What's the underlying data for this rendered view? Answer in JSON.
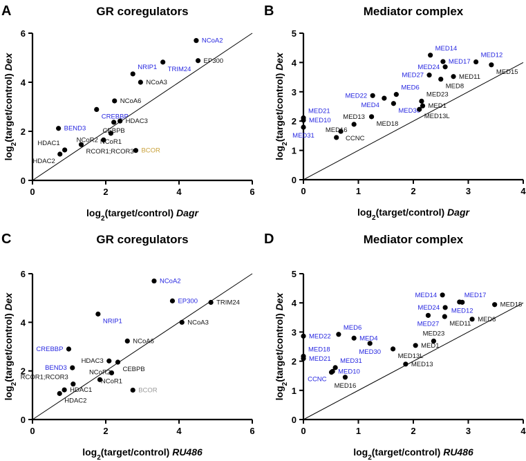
{
  "colors": {
    "blue": "#2626e0",
    "black": "#111111",
    "gold": "#c9a23c",
    "gray": "#9a9a9a"
  },
  "chart_data": [
    {
      "panel": "A",
      "type": "scatter",
      "title": "GR coregulators",
      "xlabel": {
        "prefix": "log",
        "sub": "2",
        "main": "(target/control) ",
        "italic": "Dagr"
      },
      "ylabel": {
        "prefix": "log",
        "sub": "2",
        "main": "(target/control) ",
        "italic": "Dex"
      },
      "xlim": [
        0,
        6
      ],
      "ylim": [
        0,
        6
      ],
      "xticks": [
        0,
        2,
        4,
        6
      ],
      "yticks": [
        0,
        2,
        4,
        6
      ],
      "identity_line": true,
      "points": [
        {
          "label": "NCoA2",
          "x": 4.47,
          "y": 5.7,
          "color": "blue",
          "pos": "r"
        },
        {
          "label": "EP300",
          "x": 4.52,
          "y": 4.88,
          "color": "black",
          "pos": "r"
        },
        {
          "label": "TRIM24",
          "x": 3.56,
          "y": 4.82,
          "color": "blue",
          "pos": "br"
        },
        {
          "label": "NRIP1",
          "x": 2.74,
          "y": 4.34,
          "color": "blue",
          "pos": "ar"
        },
        {
          "label": "NCoA3",
          "x": 2.95,
          "y": 4.0,
          "color": "black",
          "pos": "r"
        },
        {
          "label": "NCoA6",
          "x": 2.24,
          "y": 3.24,
          "color": "black",
          "pos": "r"
        },
        {
          "label": "CREBBP",
          "x": 1.75,
          "y": 2.89,
          "color": "blue",
          "pos": "br"
        },
        {
          "label": "CEBPB",
          "x": 2.22,
          "y": 2.37,
          "color": "black",
          "pos": "l"
        },
        {
          "label": "HDAC3",
          "x": 2.39,
          "y": 2.42,
          "color": "black",
          "pos": "r"
        },
        {
          "label": "BEND3",
          "x": 0.71,
          "y": 2.12,
          "color": "blue",
          "pos": "r"
        },
        {
          "label": "NCoR1",
          "x": 2.14,
          "y": 1.92,
          "color": "black",
          "pos": "r"
        },
        {
          "label": "NCoR2",
          "x": 1.94,
          "y": 1.65,
          "color": "black",
          "pos": "r"
        },
        {
          "label": "RCOR1;RCOR3",
          "x": 1.33,
          "y": 1.46,
          "color": "black",
          "pos": "br"
        },
        {
          "label": "HDAC1",
          "x": 0.88,
          "y": 1.24,
          "color": "black",
          "pos": "al"
        },
        {
          "label": "HDAC2",
          "x": 0.75,
          "y": 1.07,
          "color": "black",
          "pos": "bl"
        },
        {
          "label": "BCOR",
          "x": 2.82,
          "y": 1.22,
          "color": "gold",
          "pos": "r"
        }
      ]
    },
    {
      "panel": "B",
      "type": "scatter",
      "title": "Mediator complex",
      "xlabel": {
        "prefix": "log",
        "sub": "2",
        "main": "(target/control) ",
        "italic": "Dagr"
      },
      "ylabel": {
        "prefix": "log",
        "sub": "2",
        "main": "(target/control) ",
        "italic": "Dex"
      },
      "xlim": [
        0,
        4
      ],
      "ylim": [
        0,
        5
      ],
      "xticks": [
        0,
        1,
        2,
        3,
        4
      ],
      "yticks": [
        0,
        1,
        2,
        3,
        4,
        5
      ],
      "identity_line": true,
      "points": [
        {
          "label": "MED14",
          "x": 2.31,
          "y": 4.25,
          "color": "blue",
          "pos": "ar"
        },
        {
          "label": "MED17",
          "x": 2.54,
          "y": 4.03,
          "color": "blue",
          "pos": "r"
        },
        {
          "label": "MED12",
          "x": 3.14,
          "y": 4.02,
          "color": "blue",
          "pos": "ar"
        },
        {
          "label": "MED15",
          "x": 3.42,
          "y": 3.92,
          "color": "black",
          "pos": "br"
        },
        {
          "label": "MED24",
          "x": 2.58,
          "y": 3.85,
          "color": "blue",
          "pos": "l"
        },
        {
          "label": "MED27",
          "x": 2.29,
          "y": 3.57,
          "color": "blue",
          "pos": "l"
        },
        {
          "label": "MED11",
          "x": 2.73,
          "y": 3.52,
          "color": "black",
          "pos": "r"
        },
        {
          "label": "MED8",
          "x": 2.5,
          "y": 3.43,
          "color": "black",
          "pos": "br"
        },
        {
          "label": "MED6",
          "x": 1.69,
          "y": 2.91,
          "color": "blue",
          "pos": "ar"
        },
        {
          "label": "MED22",
          "x": 1.26,
          "y": 2.87,
          "color": "blue",
          "pos": "l"
        },
        {
          "label": "MED4",
          "x": 1.47,
          "y": 2.78,
          "color": "blue",
          "pos": "bl"
        },
        {
          "label": "MED30",
          "x": 1.64,
          "y": 2.6,
          "color": "blue",
          "pos": "br"
        },
        {
          "label": "MED23",
          "x": 2.15,
          "y": 2.68,
          "color": "black",
          "pos": "ar"
        },
        {
          "label": "MED1",
          "x": 2.17,
          "y": 2.52,
          "color": "black",
          "pos": "r"
        },
        {
          "label": "MED13L",
          "x": 2.11,
          "y": 2.4,
          "color": "black",
          "pos": "br"
        },
        {
          "label": "MED18",
          "x": 1.24,
          "y": 2.15,
          "color": "black",
          "pos": "br"
        },
        {
          "label": "MED13",
          "x": 0.92,
          "y": 1.89,
          "color": "black",
          "pos": "r"
        },
        {
          "label": "CCNC",
          "x": 0.68,
          "y": 1.65,
          "color": "black",
          "pos": "br"
        },
        {
          "label": "MED16",
          "x": 0.6,
          "y": 1.44,
          "color": "black",
          "pos": "br"
        },
        {
          "label": "MED21",
          "x": 0.0,
          "y": 2.11,
          "color": "blue",
          "pos": "ar"
        },
        {
          "label": "MED10",
          "x": 0.0,
          "y": 2.03,
          "color": "blue",
          "pos": "br"
        },
        {
          "label": "MED31",
          "x": 0.0,
          "y": 1.79,
          "color": "blue",
          "pos": "br2"
        }
      ]
    },
    {
      "panel": "C",
      "type": "scatter",
      "title": "GR coregulators",
      "xlabel": {
        "prefix": "log",
        "sub": "2",
        "main": "(target/control) ",
        "italic": "RU486"
      },
      "ylabel": {
        "prefix": "log",
        "sub": "2",
        "main": "(target/control) ",
        "italic": "Dex"
      },
      "xlim": [
        0,
        6
      ],
      "ylim": [
        0,
        6
      ],
      "xticks": [
        0,
        2,
        4,
        6
      ],
      "yticks": [
        0,
        2,
        4,
        6
      ],
      "identity_line": true,
      "points": [
        {
          "label": "NCoA2",
          "x": 3.32,
          "y": 5.7,
          "color": "blue",
          "pos": "r"
        },
        {
          "label": "EP300",
          "x": 3.82,
          "y": 4.88,
          "color": "blue",
          "pos": "r"
        },
        {
          "label": "TRIM24",
          "x": 4.87,
          "y": 4.82,
          "color": "black",
          "pos": "r"
        },
        {
          "label": "NRIP1",
          "x": 1.79,
          "y": 4.34,
          "color": "blue",
          "pos": "br"
        },
        {
          "label": "NCoA3",
          "x": 4.08,
          "y": 4.0,
          "color": "black",
          "pos": "r"
        },
        {
          "label": "NCoA6",
          "x": 2.59,
          "y": 3.23,
          "color": "black",
          "pos": "r"
        },
        {
          "label": "CREBBP",
          "x": 0.99,
          "y": 2.9,
          "color": "blue",
          "pos": "l"
        },
        {
          "label": "HDAC3",
          "x": 2.09,
          "y": 2.41,
          "color": "black",
          "pos": "l"
        },
        {
          "label": "CEBPB",
          "x": 2.33,
          "y": 2.36,
          "color": "black",
          "pos": "br"
        },
        {
          "label": "BEND3",
          "x": 1.09,
          "y": 2.13,
          "color": "blue",
          "pos": "l"
        },
        {
          "label": "NCoR1",
          "x": 2.16,
          "y": 1.92,
          "color": "black",
          "pos": "r"
        },
        {
          "label": "NCoR2",
          "x": 1.84,
          "y": 1.64,
          "color": "black",
          "pos": "br"
        },
        {
          "label": "RCOR1;RCOR3",
          "x": 1.11,
          "y": 1.46,
          "color": "black",
          "pos": "al"
        },
        {
          "label": "HDAC1",
          "x": 0.87,
          "y": 1.22,
          "color": "black",
          "pos": "r"
        },
        {
          "label": "HDAC2",
          "x": 0.74,
          "y": 1.07,
          "color": "black",
          "pos": "br"
        },
        {
          "label": "BCOR",
          "x": 2.74,
          "y": 1.21,
          "color": "gray",
          "pos": "r"
        }
      ]
    },
    {
      "panel": "D",
      "type": "scatter",
      "title": "Mediator complex",
      "xlabel": {
        "prefix": "log",
        "sub": "2",
        "main": "(target/control) ",
        "italic": "RU486"
      },
      "ylabel": {
        "prefix": "log",
        "sub": "2",
        "main": "(target/control) ",
        "italic": "Dex"
      },
      "xlim": [
        0,
        4
      ],
      "ylim": [
        0,
        5
      ],
      "xticks": [
        0,
        1,
        2,
        3,
        4
      ],
      "yticks": [
        0,
        1,
        2,
        3,
        4,
        5
      ],
      "identity_line": true,
      "points": [
        {
          "label": "MED14",
          "x": 2.53,
          "y": 4.27,
          "color": "blue",
          "pos": "l"
        },
        {
          "label": "MED17",
          "x": 2.84,
          "y": 4.03,
          "color": "blue",
          "pos": "ar"
        },
        {
          "label": "MED12",
          "x": 2.89,
          "y": 4.02,
          "color": "blue",
          "pos": "r"
        },
        {
          "label": "MED15",
          "x": 3.48,
          "y": 3.94,
          "color": "black",
          "pos": "r"
        },
        {
          "label": "MED24",
          "x": 2.58,
          "y": 3.84,
          "color": "blue",
          "pos": "l"
        },
        {
          "label": "MED27",
          "x": 2.27,
          "y": 3.57,
          "color": "blue",
          "pos": "l"
        },
        {
          "label": "MED11",
          "x": 2.57,
          "y": 3.53,
          "color": "black",
          "pos": "br"
        },
        {
          "label": "MED8",
          "x": 3.07,
          "y": 3.44,
          "color": "black",
          "pos": "r"
        },
        {
          "label": "MED6",
          "x": 0.64,
          "y": 2.92,
          "color": "blue",
          "pos": "ar"
        },
        {
          "label": "MED4",
          "x": 0.92,
          "y": 2.79,
          "color": "blue",
          "pos": "ar"
        },
        {
          "label": "MED30",
          "x": 1.21,
          "y": 2.61,
          "color": "blue",
          "pos": "r"
        },
        {
          "label": "MED13L",
          "x": 1.63,
          "y": 2.42,
          "color": "black",
          "pos": "br"
        },
        {
          "label": "MED1",
          "x": 2.04,
          "y": 2.54,
          "color": "black",
          "pos": "br"
        },
        {
          "label": "MED23",
          "x": 2.37,
          "y": 2.69,
          "color": "black",
          "pos": "r"
        },
        {
          "label": "MED13",
          "x": 1.86,
          "y": 1.9,
          "color": "black",
          "pos": "r"
        },
        {
          "label": "MED22",
          "x": 0.0,
          "y": 2.86,
          "color": "blue",
          "pos": "r"
        },
        {
          "label": "MED18",
          "x": 0.0,
          "y": 2.17,
          "color": "blue",
          "pos": "ar"
        },
        {
          "label": "MED21",
          "x": 0.0,
          "y": 2.09,
          "color": "blue",
          "pos": "r"
        },
        {
          "label": "MED10",
          "x": 0.53,
          "y": 1.65,
          "color": "blue",
          "pos": "al"
        },
        {
          "label": "MED31",
          "x": 0.58,
          "y": 1.78,
          "color": "blue",
          "pos": "ar"
        },
        {
          "label": "CCNC",
          "x": 0.51,
          "y": 1.62,
          "color": "blue",
          "pos": "bl"
        },
        {
          "label": "MED16",
          "x": 0.76,
          "y": 1.45,
          "color": "black",
          "pos": "r"
        }
      ]
    }
  ]
}
